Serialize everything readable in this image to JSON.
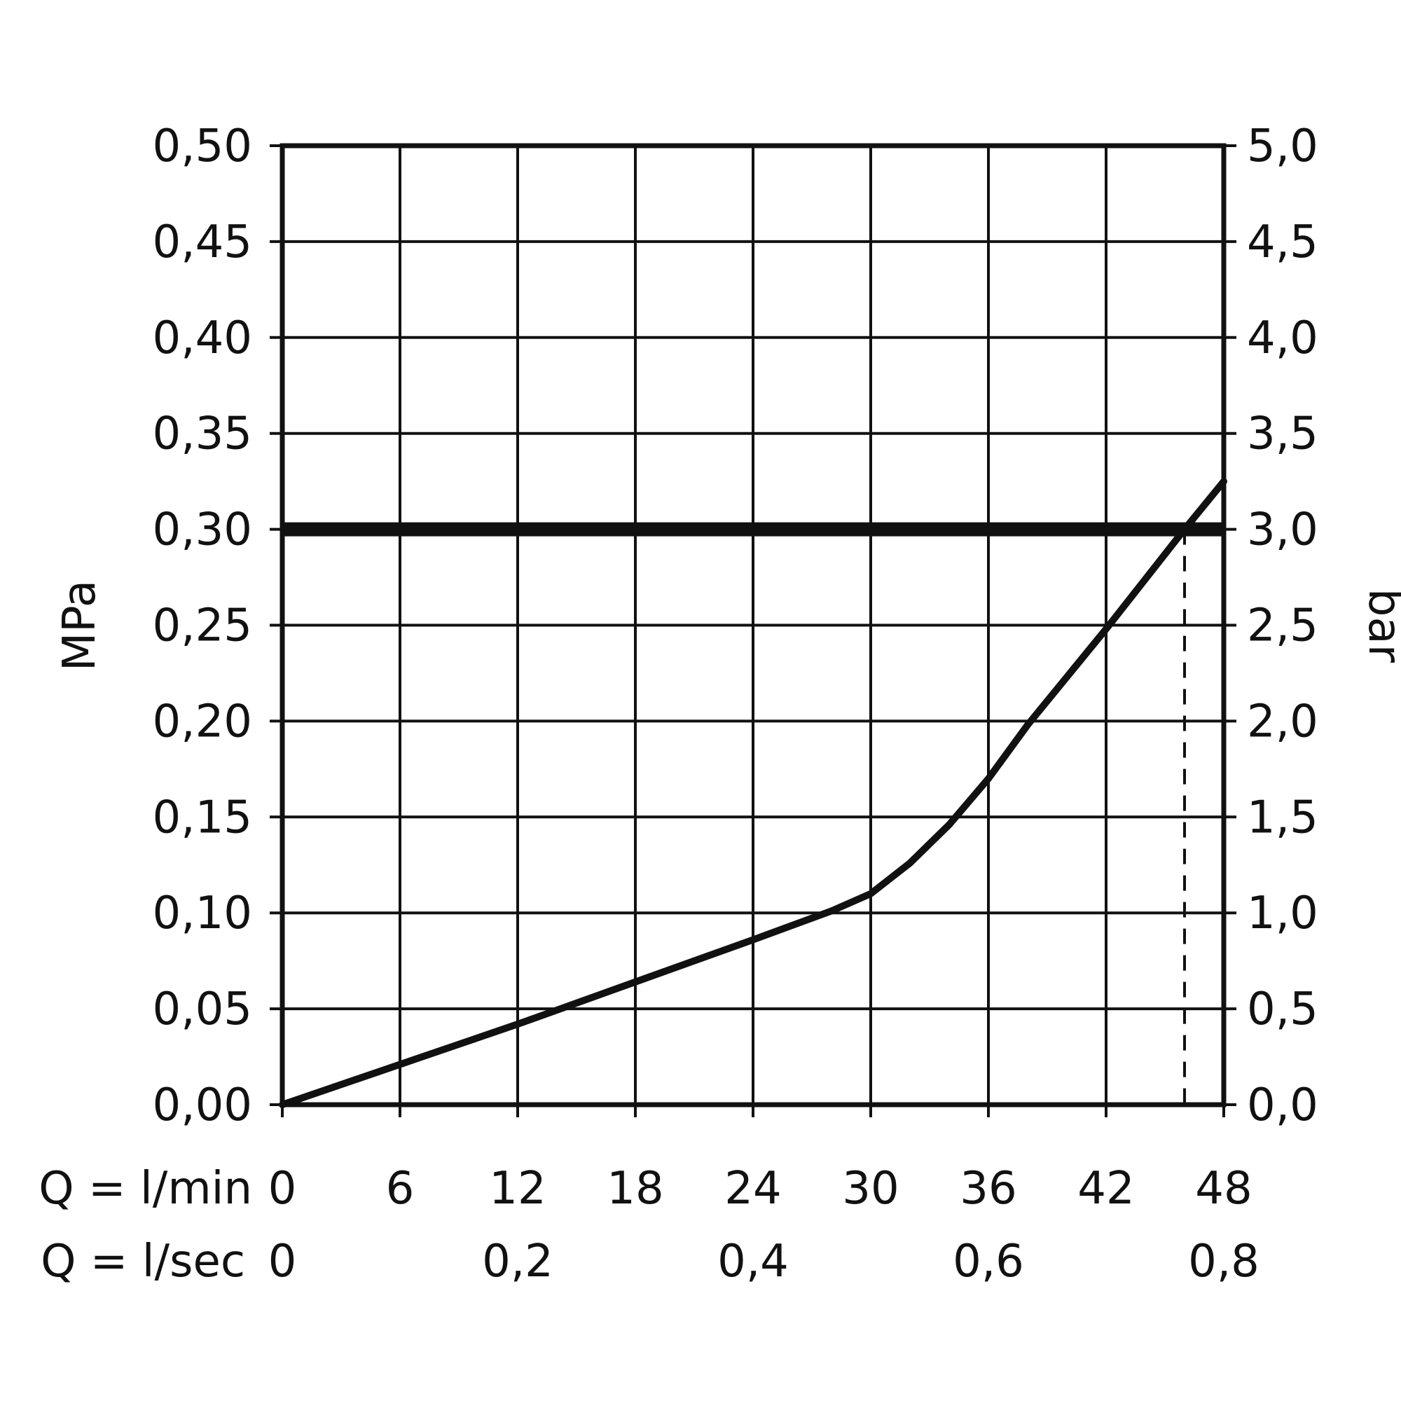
{
  "chart_data": {
    "type": "line",
    "y_left": {
      "label": "MPa",
      "ticks": [
        "0,00",
        "0,05",
        "0,10",
        "0,15",
        "0,20",
        "0,25",
        "0,30",
        "0,35",
        "0,40",
        "0,45",
        "0,50"
      ],
      "tick_values": [
        0,
        0.05,
        0.1,
        0.15,
        0.2,
        0.25,
        0.3,
        0.35,
        0.4,
        0.45,
        0.5
      ],
      "ylim": [
        0,
        0.5
      ]
    },
    "y_right": {
      "label": "bar",
      "ticks": [
        "0,0",
        "0,5",
        "1,0",
        "1,5",
        "2,0",
        "2,5",
        "3,0",
        "3,5",
        "4,0",
        "4,5",
        "5,0"
      ],
      "ylim": [
        0,
        5.0
      ]
    },
    "x_primary": {
      "label": "Q = l/min",
      "ticks": [
        "0",
        "6",
        "12",
        "18",
        "24",
        "30",
        "36",
        "42",
        "48"
      ],
      "tick_values": [
        0,
        6,
        12,
        18,
        24,
        30,
        36,
        42,
        48
      ],
      "xlim": [
        0,
        48
      ]
    },
    "x_secondary": {
      "label": "Q = l/sec",
      "ticks": [
        "0",
        "0,2",
        "0,4",
        "0,6",
        "0,8"
      ],
      "tick_values_lmin": [
        0,
        12,
        24,
        36,
        48
      ]
    },
    "grid": true,
    "series": [
      {
        "x": [
          0,
          6,
          12,
          18,
          24,
          28,
          30,
          32,
          34,
          36,
          38,
          42,
          46,
          48
        ],
        "y": [
          0,
          0.021,
          0.042,
          0.064,
          0.086,
          0.101,
          0.11,
          0.126,
          0.146,
          0.17,
          0.198,
          0.248,
          0.3,
          0.325
        ]
      }
    ],
    "reference_lines": [
      {
        "orientation": "horizontal",
        "y": 0.3,
        "style": "thick"
      },
      {
        "orientation": "vertical",
        "x": 46,
        "style": "dashed",
        "y_to": 0.3
      }
    ]
  }
}
